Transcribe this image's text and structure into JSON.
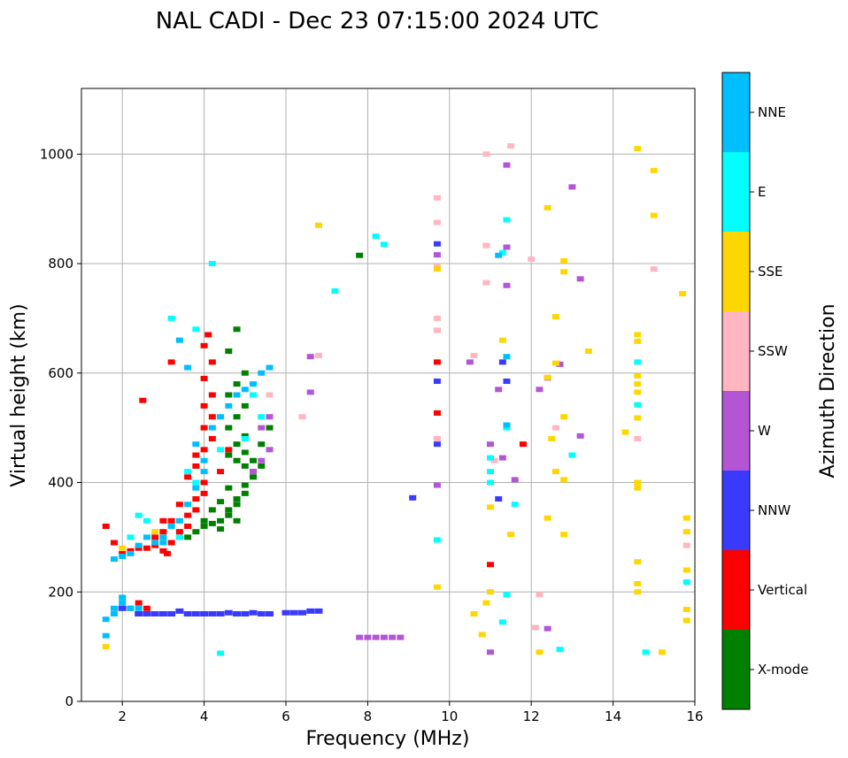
{
  "chart_data": {
    "type": "scatter",
    "title": "NAL CADI - Dec 23 07:15:00 2024 UTC",
    "xlabel": "Frequency (MHz)",
    "ylabel": "Virtual height (km)",
    "xlim": [
      1,
      16
    ],
    "ylim": [
      0,
      1120
    ],
    "xticks": [
      2,
      4,
      6,
      8,
      10,
      12,
      14,
      16
    ],
    "yticks": [
      0,
      200,
      400,
      600,
      800,
      1000
    ],
    "grid": true,
    "colorbar": {
      "title": "Azimuth Direction",
      "categories": [
        {
          "label": "X-mode",
          "color": "#008000"
        },
        {
          "label": "Vertical",
          "color": "#ff0000"
        },
        {
          "label": "NNW",
          "color": "#3a3aff"
        },
        {
          "label": "W",
          "color": "#b455d6"
        },
        {
          "label": "SSW",
          "color": "#ffb6c1"
        },
        {
          "label": "SSE",
          "color": "#ffd700"
        },
        {
          "label": "E",
          "color": "#00ffff"
        },
        {
          "label": "NNE",
          "color": "#00bfff"
        }
      ]
    },
    "series": [
      {
        "name": "X-mode",
        "points": [
          [
            3.6,
            300
          ],
          [
            3.8,
            310
          ],
          [
            4.0,
            320
          ],
          [
            4.0,
            330
          ],
          [
            4.2,
            325
          ],
          [
            4.4,
            330
          ],
          [
            4.6,
            340
          ],
          [
            4.6,
            350
          ],
          [
            4.8,
            360
          ],
          [
            4.8,
            370
          ],
          [
            5.0,
            380
          ],
          [
            5.0,
            395
          ],
          [
            5.2,
            410
          ],
          [
            5.2,
            420
          ],
          [
            5.0,
            430
          ],
          [
            4.8,
            440
          ],
          [
            5.0,
            455
          ],
          [
            4.8,
            470
          ],
          [
            5.0,
            485
          ],
          [
            4.6,
            500
          ],
          [
            4.8,
            520
          ],
          [
            5.0,
            540
          ],
          [
            4.6,
            560
          ],
          [
            4.8,
            580
          ],
          [
            5.0,
            600
          ],
          [
            4.6,
            640
          ],
          [
            4.8,
            680
          ],
          [
            5.4,
            470
          ],
          [
            5.6,
            500
          ],
          [
            4.2,
            350
          ],
          [
            4.4,
            365
          ],
          [
            4.6,
            390
          ],
          [
            7.8,
            815
          ],
          [
            4.4,
            315
          ],
          [
            4.8,
            330
          ],
          [
            5.2,
            440
          ],
          [
            4.6,
            450
          ],
          [
            5.4,
            430
          ]
        ]
      },
      {
        "name": "Vertical",
        "points": [
          [
            2.0,
            270
          ],
          [
            2.2,
            275
          ],
          [
            2.4,
            280
          ],
          [
            2.6,
            280
          ],
          [
            2.8,
            285
          ],
          [
            3.0,
            275
          ],
          [
            3.1,
            270
          ],
          [
            3.2,
            290
          ],
          [
            3.4,
            300
          ],
          [
            3.4,
            310
          ],
          [
            3.6,
            320
          ],
          [
            3.6,
            340
          ],
          [
            3.8,
            350
          ],
          [
            3.8,
            370
          ],
          [
            4.0,
            380
          ],
          [
            4.0,
            400
          ],
          [
            3.6,
            410
          ],
          [
            3.8,
            430
          ],
          [
            3.8,
            450
          ],
          [
            4.0,
            460
          ],
          [
            4.0,
            500
          ],
          [
            4.2,
            520
          ],
          [
            4.0,
            540
          ],
          [
            4.2,
            560
          ],
          [
            4.0,
            590
          ],
          [
            4.2,
            620
          ],
          [
            4.0,
            650
          ],
          [
            4.1,
            670
          ],
          [
            2.2,
            170
          ],
          [
            2.4,
            180
          ],
          [
            2.6,
            170
          ],
          [
            3.0,
            310
          ],
          [
            3.4,
            360
          ],
          [
            3.2,
            330
          ],
          [
            4.2,
            480
          ],
          [
            4.4,
            420
          ],
          [
            4.6,
            460
          ],
          [
            11.0,
            250
          ],
          [
            11.8,
            470
          ],
          [
            9.7,
            527
          ],
          [
            9.7,
            620
          ],
          [
            9.7,
            678
          ],
          [
            1.6,
            320
          ],
          [
            1.8,
            290
          ],
          [
            2.8,
            300
          ],
          [
            3.0,
            330
          ],
          [
            3.2,
            620
          ],
          [
            2.5,
            550
          ]
        ]
      },
      {
        "name": "NNW",
        "points": [
          [
            2.4,
            160
          ],
          [
            2.6,
            160
          ],
          [
            2.8,
            160
          ],
          [
            3.0,
            160
          ],
          [
            3.2,
            160
          ],
          [
            3.4,
            165
          ],
          [
            3.6,
            160
          ],
          [
            3.8,
            160
          ],
          [
            4.0,
            160
          ],
          [
            4.2,
            160
          ],
          [
            4.4,
            160
          ],
          [
            4.6,
            162
          ],
          [
            4.8,
            160
          ],
          [
            5.0,
            160
          ],
          [
            5.2,
            162
          ],
          [
            5.4,
            160
          ],
          [
            5.6,
            160
          ],
          [
            6.0,
            162
          ],
          [
            6.2,
            162
          ],
          [
            6.4,
            162
          ],
          [
            6.6,
            165
          ],
          [
            6.8,
            165
          ],
          [
            9.7,
            836
          ],
          [
            9.7,
            585
          ],
          [
            9.7,
            470
          ],
          [
            11.3,
            620
          ],
          [
            11.2,
            370
          ],
          [
            2.0,
            170
          ],
          [
            9.1,
            372
          ],
          [
            11.4,
            585
          ]
        ]
      },
      {
        "name": "W",
        "points": [
          [
            7.8,
            117
          ],
          [
            8.0,
            117
          ],
          [
            8.2,
            117
          ],
          [
            8.4,
            117
          ],
          [
            8.6,
            117
          ],
          [
            8.8,
            117
          ],
          [
            5.2,
            420
          ],
          [
            5.4,
            440
          ],
          [
            5.6,
            460
          ],
          [
            5.4,
            500
          ],
          [
            5.6,
            520
          ],
          [
            6.6,
            565
          ],
          [
            6.6,
            630
          ],
          [
            11.2,
            570
          ],
          [
            11.0,
            470
          ],
          [
            11.3,
            445
          ],
          [
            11.6,
            405
          ],
          [
            12.2,
            570
          ],
          [
            12.4,
            133
          ],
          [
            13.0,
            940
          ],
          [
            13.2,
            772
          ],
          [
            13.2,
            485
          ],
          [
            9.7,
            816
          ],
          [
            9.7,
            395
          ],
          [
            11.4,
            830
          ],
          [
            11.4,
            980
          ],
          [
            11.0,
            90
          ],
          [
            12.4,
            591
          ],
          [
            12.7,
            616
          ],
          [
            11.4,
            760
          ],
          [
            10.5,
            620
          ]
        ]
      },
      {
        "name": "SSW",
        "points": [
          [
            9.7,
            920
          ],
          [
            9.7,
            875
          ],
          [
            9.7,
            795
          ],
          [
            9.7,
            700
          ],
          [
            9.7,
            678
          ],
          [
            9.7,
            480
          ],
          [
            10.9,
            1000
          ],
          [
            10.9,
            833
          ],
          [
            10.9,
            765
          ],
          [
            10.6,
            632
          ],
          [
            12.0,
            808
          ],
          [
            12.2,
            195
          ],
          [
            12.6,
            500
          ],
          [
            14.6,
            480
          ],
          [
            15.0,
            790
          ],
          [
            15.8,
            285
          ],
          [
            5.6,
            560
          ],
          [
            6.4,
            520
          ],
          [
            6.8,
            632
          ],
          [
            11.5,
            1015
          ],
          [
            12.1,
            135
          ],
          [
            11.1,
            440
          ]
        ]
      },
      {
        "name": "SSE",
        "points": [
          [
            14.6,
            1010
          ],
          [
            15.0,
            970
          ],
          [
            15.0,
            888
          ],
          [
            12.4,
            902
          ],
          [
            12.8,
            805
          ],
          [
            12.8,
            785
          ],
          [
            12.6,
            703
          ],
          [
            12.6,
            618
          ],
          [
            12.4,
            592
          ],
          [
            14.6,
            670
          ],
          [
            14.6,
            658
          ],
          [
            14.6,
            595
          ],
          [
            14.6,
            580
          ],
          [
            14.6,
            565
          ],
          [
            14.6,
            542
          ],
          [
            14.6,
            518
          ],
          [
            14.6,
            400
          ],
          [
            14.6,
            390
          ],
          [
            14.3,
            492
          ],
          [
            12.6,
            420
          ],
          [
            12.8,
            405
          ],
          [
            12.4,
            335
          ],
          [
            12.8,
            305
          ],
          [
            14.6,
            255
          ],
          [
            14.6,
            215
          ],
          [
            14.6,
            200
          ],
          [
            15.8,
            335
          ],
          [
            15.8,
            310
          ],
          [
            15.8,
            240
          ],
          [
            15.8,
            168
          ],
          [
            15.8,
            148
          ],
          [
            15.2,
            90
          ],
          [
            12.2,
            90
          ],
          [
            10.8,
            122
          ],
          [
            10.6,
            160
          ],
          [
            10.9,
            180
          ],
          [
            11.0,
            200
          ],
          [
            9.7,
            790
          ],
          [
            9.7,
            209
          ],
          [
            6.8,
            870
          ],
          [
            3.0,
            300
          ],
          [
            2.8,
            310
          ],
          [
            2.0,
            280
          ],
          [
            1.6,
            100
          ],
          [
            11.0,
            355
          ],
          [
            12.5,
            480
          ],
          [
            12.8,
            520
          ],
          [
            15.7,
            745
          ],
          [
            13.4,
            640
          ],
          [
            11.5,
            305
          ],
          [
            11.3,
            660
          ]
        ]
      },
      {
        "name": "E",
        "points": [
          [
            8.2,
            850
          ],
          [
            8.4,
            835
          ],
          [
            4.2,
            800
          ],
          [
            7.2,
            750
          ],
          [
            9.7,
            295
          ],
          [
            11.0,
            445
          ],
          [
            11.0,
            420
          ],
          [
            11.0,
            400
          ],
          [
            11.3,
            145
          ],
          [
            11.4,
            195
          ],
          [
            11.6,
            360
          ],
          [
            12.7,
            95
          ],
          [
            14.8,
            90
          ],
          [
            14.6,
            620
          ],
          [
            14.6,
            542
          ],
          [
            15.8,
            218
          ],
          [
            11.4,
            500
          ],
          [
            11.3,
            820
          ],
          [
            13.0,
            450
          ],
          [
            2.4,
            340
          ],
          [
            2.6,
            330
          ],
          [
            3.2,
            700
          ],
          [
            3.6,
            420
          ],
          [
            4.4,
            88
          ],
          [
            3.8,
            680
          ],
          [
            5.2,
            560
          ],
          [
            5.4,
            520
          ],
          [
            5.0,
            480
          ],
          [
            4.4,
            460
          ],
          [
            3.8,
            400
          ],
          [
            3.4,
            300
          ],
          [
            2.2,
            300
          ],
          [
            11.4,
            880
          ]
        ]
      },
      {
        "name": "NNE",
        "points": [
          [
            1.6,
            120
          ],
          [
            1.6,
            150
          ],
          [
            1.8,
            160
          ],
          [
            1.8,
            170
          ],
          [
            2.0,
            180
          ],
          [
            2.2,
            170
          ],
          [
            2.0,
            190
          ],
          [
            2.4,
            170
          ],
          [
            1.8,
            260
          ],
          [
            2.0,
            265
          ],
          [
            2.2,
            270
          ],
          [
            2.6,
            300
          ],
          [
            2.8,
            290
          ],
          [
            3.0,
            300
          ],
          [
            3.2,
            320
          ],
          [
            3.4,
            330
          ],
          [
            3.6,
            360
          ],
          [
            3.8,
            390
          ],
          [
            4.0,
            420
          ],
          [
            4.0,
            440
          ],
          [
            3.8,
            470
          ],
          [
            4.2,
            500
          ],
          [
            4.4,
            520
          ],
          [
            4.6,
            540
          ],
          [
            4.8,
            560
          ],
          [
            5.0,
            570
          ],
          [
            5.2,
            580
          ],
          [
            5.4,
            600
          ],
          [
            5.6,
            610
          ],
          [
            11.2,
            815
          ],
          [
            11.4,
            630
          ],
          [
            2.4,
            285
          ],
          [
            3.0,
            290
          ],
          [
            3.6,
            610
          ],
          [
            3.4,
            660
          ],
          [
            11.4,
            505
          ]
        ]
      }
    ]
  }
}
